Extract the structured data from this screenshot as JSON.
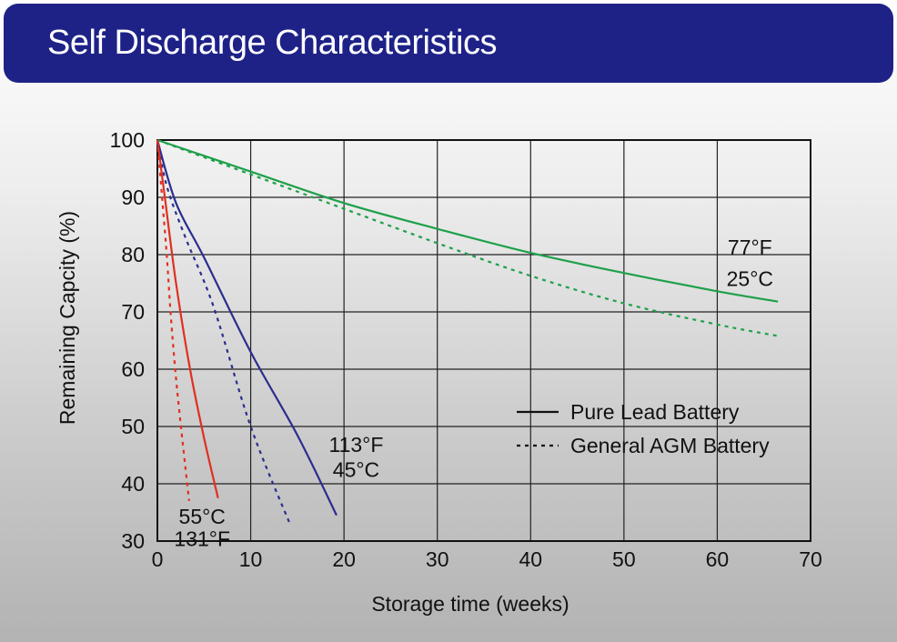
{
  "header": {
    "title": "Self Discharge Characteristics"
  },
  "chart_data": {
    "type": "line",
    "title": "Self Discharge Characteristics",
    "xlabel": "Storage time (weeks)",
    "ylabel": "Remaining Capcity (%)",
    "xlim": [
      0,
      70
    ],
    "ylim": [
      30,
      100
    ],
    "xticks": [
      "0",
      "10",
      "20",
      "30",
      "40",
      "50",
      "60",
      "70"
    ],
    "yticks": [
      "30",
      "40",
      "50",
      "60",
      "70",
      "80",
      "90",
      "100"
    ],
    "grid": true,
    "legend": {
      "position": "right",
      "entries": [
        {
          "label": "Pure Lead Battery",
          "style": "solid"
        },
        {
          "label": "General AGM Battery",
          "style": "dotted"
        }
      ]
    },
    "series": [
      {
        "group": "25C",
        "battery": "Pure Lead Battery",
        "style": "solid",
        "color": "#1ea04a",
        "points": [
          [
            0,
            100
          ],
          [
            10,
            94.5
          ],
          [
            20,
            89
          ],
          [
            30,
            84.5
          ],
          [
            40,
            80.3
          ],
          [
            50,
            76.8
          ],
          [
            60,
            73.6
          ],
          [
            66.5,
            71.8
          ]
        ]
      },
      {
        "group": "25C",
        "battery": "General AGM Battery",
        "style": "dotted",
        "color": "#1ea04a",
        "points": [
          [
            0,
            100
          ],
          [
            10,
            94
          ],
          [
            20,
            88
          ],
          [
            30,
            82
          ],
          [
            40,
            76.3
          ],
          [
            50,
            71.5
          ],
          [
            60,
            67.8
          ],
          [
            66.5,
            65.8
          ]
        ]
      },
      {
        "group": "45C",
        "battery": "Pure Lead Battery",
        "style": "solid",
        "color": "#2a2e8f",
        "points": [
          [
            0,
            100
          ],
          [
            2,
            89
          ],
          [
            5,
            79.5
          ],
          [
            10,
            63
          ],
          [
            15,
            48.5
          ],
          [
            19.2,
            34.5
          ]
        ]
      },
      {
        "group": "45C",
        "battery": "General AGM Battery",
        "style": "dotted",
        "color": "#2a2e8f",
        "points": [
          [
            0,
            100
          ],
          [
            1,
            92
          ],
          [
            3,
            83
          ],
          [
            6,
            71
          ],
          [
            10,
            50
          ],
          [
            14.2,
            33
          ]
        ]
      },
      {
        "group": "55C",
        "battery": "Pure Lead Battery",
        "style": "solid",
        "color": "#e03020",
        "points": [
          [
            0,
            100
          ],
          [
            0.8,
            90
          ],
          [
            2,
            75
          ],
          [
            3.5,
            60
          ],
          [
            5,
            48
          ],
          [
            6.5,
            37.5
          ]
        ]
      },
      {
        "group": "55C",
        "battery": "General AGM Battery",
        "style": "dotted",
        "color": "#e03020",
        "points": [
          [
            0,
            100
          ],
          [
            0.5,
            90
          ],
          [
            1,
            80
          ],
          [
            1.5,
            68
          ],
          [
            2.2,
            55
          ],
          [
            3.4,
            37
          ]
        ]
      }
    ],
    "annotations": [
      {
        "id": "a25f",
        "text": "77°F",
        "x": 63.5,
        "y": 81.3
      },
      {
        "id": "a25c",
        "text": "25°C",
        "x": 63.5,
        "y": 75.8
      },
      {
        "id": "a45f",
        "text": "113°F",
        "x": 21.3,
        "y": 46.8
      },
      {
        "id": "a45c",
        "text": "45°C",
        "x": 21.3,
        "y": 42.5
      },
      {
        "id": "a55c",
        "text": "55°C",
        "x": 4.8,
        "y": 34.3
      },
      {
        "id": "a55f",
        "text": "131°F",
        "x": 4.8,
        "y": 30.4
      }
    ]
  }
}
